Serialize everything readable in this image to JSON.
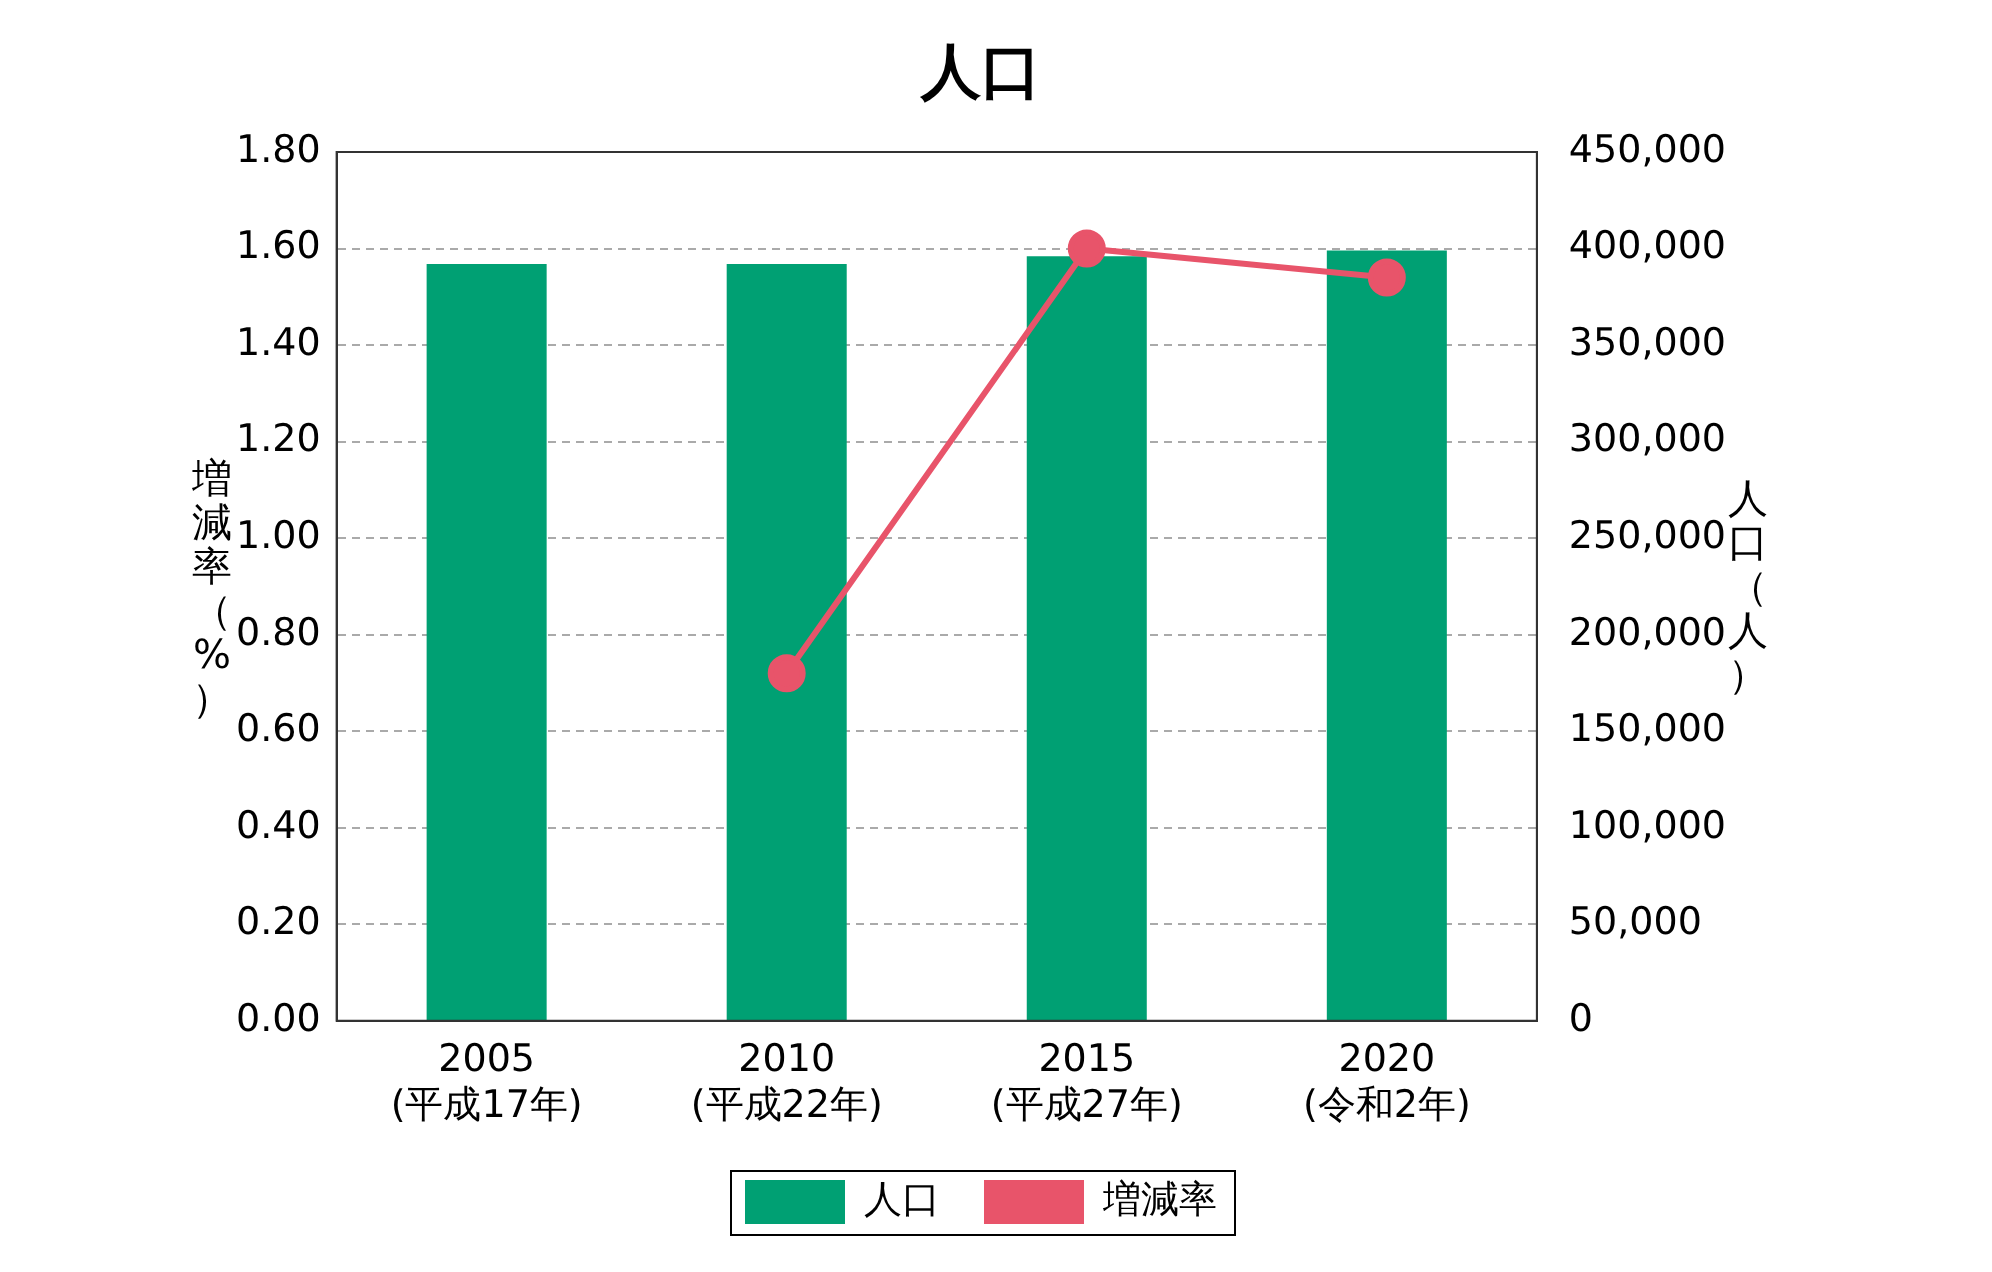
{
  "chart_data": {
    "type": "bar",
    "title": "人口",
    "ylabel": "増減率（%）",
    "y2label": "人口（人）",
    "categories": [
      "2005\n(平成17年)",
      "2010\n(平成22年)",
      "2015\n(平成27年)",
      "2020\n(令和2年)"
    ],
    "series": [
      {
        "name": "人口",
        "axis": "y2",
        "color": "#00a073",
        "values": [
          392000,
          392000,
          396000,
          399000
        ]
      },
      {
        "name": "増減率",
        "type": "line",
        "axis": "y",
        "color": "#e8546a",
        "values": [
          null,
          0.72,
          1.6,
          1.54
        ]
      }
    ],
    "ylim": [
      0,
      1.8
    ],
    "yticks": [
      {
        "value": 0,
        "label": "0.00"
      },
      {
        "value": 0.2,
        "label": "0.20"
      },
      {
        "value": 0.4,
        "label": "0.40"
      },
      {
        "value": 0.6,
        "label": "0.60"
      },
      {
        "value": 0.8,
        "label": "0.80"
      },
      {
        "value": 1,
        "label": "1.00"
      },
      {
        "value": 1.2,
        "label": "1.20"
      },
      {
        "value": 1.4,
        "label": "1.40"
      },
      {
        "value": 1.6,
        "label": "1.60"
      },
      {
        "value": 1.8,
        "label": "1.80"
      }
    ],
    "y2lim": [
      0,
      450000
    ],
    "y2ticks": [
      0,
      {
        "value": 50000,
        "label": "50,000"
      },
      {
        "value": 100000,
        "label": "100,000"
      },
      {
        "value": 150000,
        "label": "150,000"
      },
      {
        "value": 200000,
        "label": "200,000"
      },
      {
        "value": 250000,
        "label": "250,000"
      },
      {
        "value": 300000,
        "label": "300,000"
      },
      {
        "value": 350000,
        "label": "350,000"
      },
      {
        "value": 400000,
        "label": "400,000"
      },
      {
        "value": 450000,
        "label": "450,000"
      }
    ],
    "grid": "y",
    "legend": "bottom",
    "marker": "circle"
  }
}
